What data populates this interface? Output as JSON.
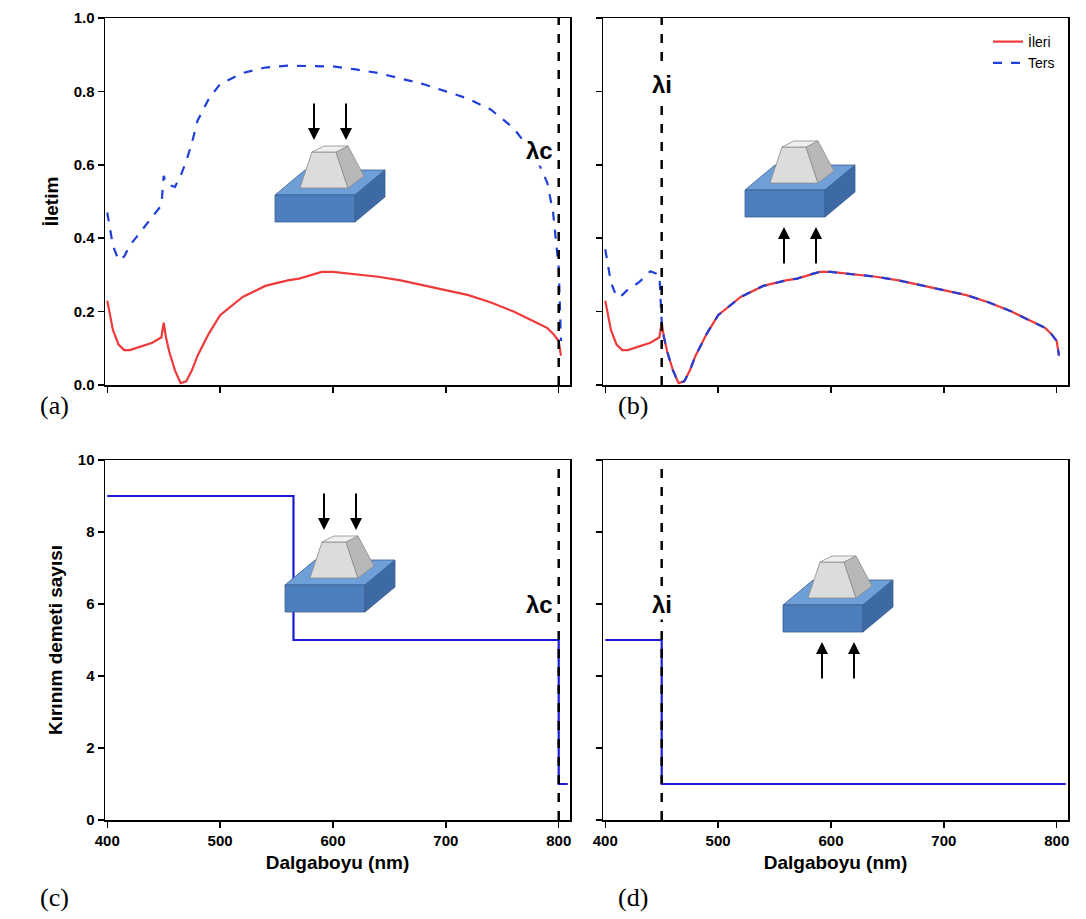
{
  "chart_data": [
    {
      "type": "line",
      "panel_label": "(a)",
      "y_label": "İletim",
      "xlim": [
        398,
        810
      ],
      "xticks": [
        400,
        500,
        600,
        700,
        800
      ],
      "ylim": [
        0,
        1
      ],
      "yticks": [
        {
          "value": 0,
          "label": "0.0"
        },
        0.2,
        0.4,
        0.6,
        0.8,
        {
          "value": 1,
          "label": "1.0"
        }
      ],
      "tick_labels": "y",
      "grid": false,
      "x": [
        400,
        405,
        410,
        415,
        420,
        430,
        440,
        448,
        450,
        452,
        455,
        460,
        465,
        470,
        475,
        480,
        490,
        500,
        520,
        540,
        560,
        570,
        580,
        590,
        600,
        620,
        640,
        660,
        680,
        700,
        720,
        740,
        760,
        780,
        790,
        795,
        800,
        802
      ],
      "series": [
        {
          "name": "İleri",
          "color": "#ee3a3a",
          "line_style": "solid",
          "values": [
            0.23,
            0.15,
            0.11,
            0.095,
            0.095,
            0.105,
            0.115,
            0.13,
            0.17,
            0.13,
            0.09,
            0.04,
            0.005,
            0.01,
            0.04,
            0.08,
            0.14,
            0.19,
            0.24,
            0.27,
            0.285,
            0.29,
            0.3,
            0.308,
            0.308,
            0.302,
            0.295,
            0.285,
            0.272,
            0.26,
            0.245,
            0.225,
            0.2,
            0.17,
            0.155,
            0.14,
            0.12,
            0.08
          ]
        },
        {
          "name": "Ters",
          "color": "#1f3fd8",
          "line_style": "dashed",
          "values": [
            0.47,
            0.38,
            0.34,
            0.35,
            0.38,
            0.42,
            0.46,
            0.49,
            0.57,
            0.55,
            0.545,
            0.54,
            0.57,
            0.61,
            0.66,
            0.72,
            0.78,
            0.82,
            0.85,
            0.865,
            0.87,
            0.87,
            0.87,
            0.87,
            0.868,
            0.86,
            0.85,
            0.835,
            0.82,
            0.8,
            0.78,
            0.75,
            0.7,
            0.62,
            0.55,
            0.47,
            0.32,
            0.12
          ]
        }
      ],
      "annotations": [
        {
          "text": "λc",
          "x": 800
        }
      ]
    },
    {
      "type": "line",
      "panel_label": "(b)",
      "legend": "upper right",
      "xlim": [
        398,
        810
      ],
      "xticks": [
        400,
        500,
        600,
        700,
        800
      ],
      "ylim": [
        0,
        1
      ],
      "yticks": [
        {
          "value": 0,
          "label": "0.0"
        },
        0.2,
        0.4,
        0.6,
        0.8,
        {
          "value": 1,
          "label": "1.0"
        }
      ],
      "tick_labels": false,
      "grid": false,
      "x": [
        400,
        405,
        410,
        415,
        420,
        430,
        440,
        448,
        450,
        452,
        455,
        460,
        465,
        470,
        475,
        480,
        490,
        500,
        520,
        540,
        560,
        570,
        580,
        590,
        600,
        620,
        640,
        660,
        680,
        700,
        720,
        740,
        760,
        780,
        790,
        795,
        800,
        802
      ],
      "series": [
        {
          "name": "İleri",
          "color": "#ee3a3a",
          "line_style": "solid",
          "values": [
            0.23,
            0.15,
            0.11,
            0.095,
            0.095,
            0.105,
            0.115,
            0.13,
            0.17,
            0.13,
            0.09,
            0.04,
            0.005,
            0.01,
            0.04,
            0.08,
            0.14,
            0.19,
            0.24,
            0.27,
            0.285,
            0.29,
            0.3,
            0.308,
            0.308,
            0.302,
            0.295,
            0.285,
            0.272,
            0.26,
            0.245,
            0.225,
            0.2,
            0.17,
            0.155,
            0.14,
            0.12,
            0.08
          ]
        },
        {
          "name": "Ters",
          "color": "#1f3fd8",
          "line_style": "dashed",
          "values": [
            0.37,
            0.28,
            0.24,
            0.245,
            0.26,
            0.28,
            0.31,
            0.3,
            0.17,
            0.13,
            0.09,
            0.04,
            0.005,
            0.01,
            0.04,
            0.08,
            0.14,
            0.19,
            0.24,
            0.27,
            0.285,
            0.29,
            0.3,
            0.308,
            0.308,
            0.302,
            0.295,
            0.285,
            0.272,
            0.26,
            0.245,
            0.225,
            0.2,
            0.17,
            0.155,
            0.14,
            0.12,
            0.08
          ]
        }
      ],
      "annotations": [
        {
          "text": "λi",
          "x": 450
        }
      ]
    },
    {
      "type": "line",
      "panel_label": "(c)",
      "y_label": "Kırınım demeti sayısı",
      "x_label": "Dalgaboyu (nm)",
      "xlim": [
        398,
        810
      ],
      "xticks": [
        400,
        500,
        600,
        700,
        800
      ],
      "ylim": [
        0,
        10
      ],
      "yticks": [
        0,
        2,
        4,
        6,
        8,
        10
      ],
      "tick_labels": true,
      "grid": false,
      "x": [
        400,
        565,
        565,
        800,
        800,
        808
      ],
      "series": [
        {
          "color": "#1a1ad6",
          "line_style": "solid",
          "values": [
            9,
            9,
            5,
            5,
            1,
            1
          ]
        }
      ],
      "annotations": [
        {
          "text": "λc",
          "x": 800
        }
      ]
    },
    {
      "type": "line",
      "panel_label": "(d)",
      "x_label": "Dalgaboyu (nm)",
      "xlim": [
        398,
        810
      ],
      "xticks": [
        400,
        500,
        600,
        700,
        800
      ],
      "ylim": [
        0,
        10
      ],
      "yticks": [
        0,
        2,
        4,
        6,
        8,
        10
      ],
      "tick_labels": "x",
      "grid": false,
      "x": [
        400,
        450,
        450,
        808
      ],
      "series": [
        {
          "color": "#1a1ad6",
          "line_style": "solid",
          "values": [
            5,
            5,
            1,
            1
          ]
        }
      ],
      "annotations": [
        {
          "text": "λi",
          "x": 450
        }
      ]
    }
  ]
}
